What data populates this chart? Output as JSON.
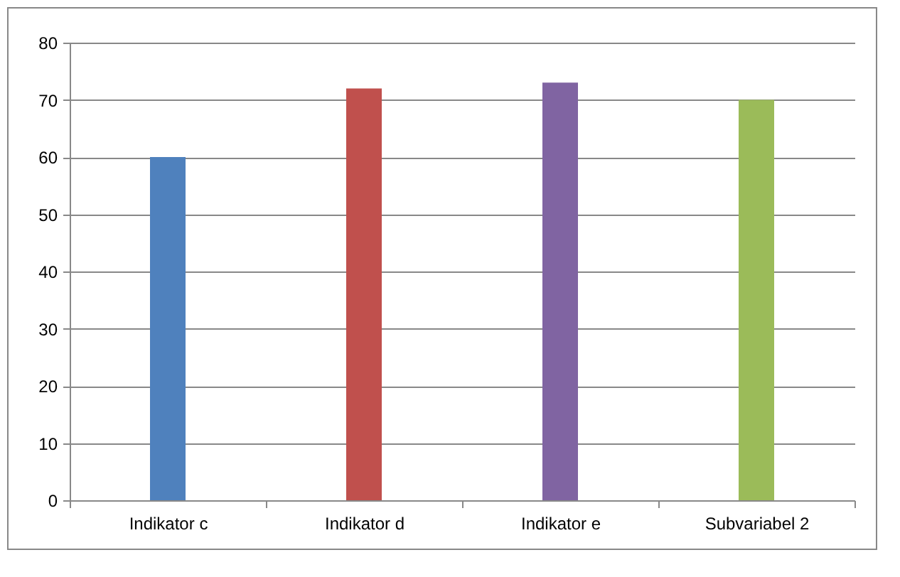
{
  "chart_data": {
    "type": "bar",
    "categories": [
      "Indikator c",
      "Indikator d",
      "Indikator e",
      "Subvariabel 2"
    ],
    "values": [
      60,
      72,
      73,
      70
    ],
    "colors": [
      "#4f81bd",
      "#c0504d",
      "#8064a2",
      "#9bbb59"
    ],
    "ylim": [
      0,
      80
    ],
    "yticks": [
      0,
      10,
      20,
      30,
      40,
      50,
      60,
      70,
      80
    ],
    "grid": "y",
    "legend": false
  }
}
